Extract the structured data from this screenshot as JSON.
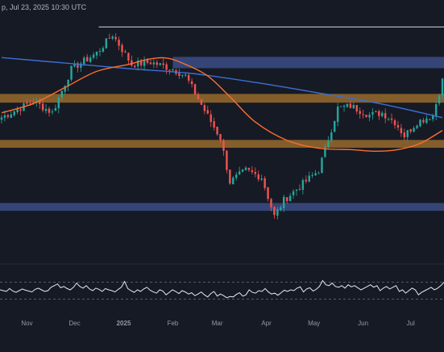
{
  "header": {
    "subtitle": "p, Jul 23, 2025 10:30 UTC"
  },
  "colors": {
    "background": "#161a25",
    "candle_up": "#26a69a",
    "candle_down": "#ef5350",
    "ma_fast": "#ff6d2e",
    "ma_slow": "#3b6fd4",
    "zone_orange": "#a8762e",
    "zone_blue": "#3b4e86",
    "resistance_line": "#d1d4dc",
    "rsi_line": "#e6e8ee",
    "axis_text": "#9598a1"
  },
  "chart_data": [
    {
      "type": "candlestick",
      "title": "",
      "x_axis": {
        "tick_labels": [
          "Nov",
          "Dec",
          "2025",
          "Feb",
          "Mar",
          "Apr",
          "May",
          "Jun",
          "Jul"
        ],
        "bold_labels": [
          "2025"
        ]
      },
      "y_axis": {
        "shown": false,
        "ylim": [
          0,
          100
        ]
      },
      "grid": false,
      "annotations": {
        "horizontal_line": {
          "level": 95.3,
          "from": "Dec"
        },
        "zones": [
          {
            "color": "blue",
            "from_level": 77.4,
            "to_level": 82.3,
            "from": "Feb"
          },
          {
            "color": "orange",
            "from_level": 62.4,
            "to_level": 66.2
          },
          {
            "color": "orange",
            "from_level": 42.8,
            "to_level": 46.2
          },
          {
            "color": "blue",
            "from_level": 15.4,
            "to_level": 18.8
          }
        ]
      },
      "series": [
        {
          "kind": "candles",
          "start": "2024-10-15",
          "period_days": 2,
          "count": 140,
          "close_path": [
            [
              0,
              56
            ],
            [
              10,
              63
            ],
            [
              16,
              58
            ],
            [
              22,
              77
            ],
            [
              30,
              84
            ],
            [
              35,
              92
            ],
            [
              41,
              79
            ],
            [
              47,
              80
            ],
            [
              54,
              77
            ],
            [
              58,
              74
            ],
            [
              64,
              59
            ],
            [
              69,
              47
            ],
            [
              72,
              28
            ],
            [
              77,
              33
            ],
            [
              82,
              30
            ],
            [
              86,
              13
            ],
            [
              89,
              20
            ],
            [
              94,
              26
            ],
            [
              100,
              33
            ],
            [
              106,
              60
            ],
            [
              110,
              61
            ],
            [
              116,
              57
            ],
            [
              120,
              58
            ],
            [
              124,
              54
            ],
            [
              127,
              48
            ],
            [
              131,
              54
            ],
            [
              136,
              57
            ],
            [
              139,
              72
            ]
          ]
        },
        {
          "kind": "moving_average_slow",
          "points": [
            [
              0,
              82
            ],
            [
              20,
              79.6
            ],
            [
              40,
              77.2
            ],
            [
              60,
              75.1
            ],
            [
              80,
              71.2
            ],
            [
              100,
              66.6
            ],
            [
              120,
              61.8
            ],
            [
              139,
              55.9
            ]
          ]
        },
        {
          "kind": "moving_average_fast",
          "points": [
            [
              0,
              58
            ],
            [
              10,
              62
            ],
            [
              20,
              69
            ],
            [
              30,
              76
            ],
            [
              40,
              79
            ],
            [
              46,
              81.2
            ],
            [
              52,
              81.8
            ],
            [
              58,
              79
            ],
            [
              65,
              74
            ],
            [
              72,
              65
            ],
            [
              80,
              54
            ],
            [
              90,
              46
            ],
            [
              100,
              42.6
            ],
            [
              110,
              42
            ],
            [
              118,
              41.3
            ],
            [
              125,
              42
            ],
            [
              132,
              44.7
            ],
            [
              139,
              50.3
            ]
          ]
        }
      ]
    },
    {
      "type": "line",
      "title": "",
      "indicator": "RSI",
      "reference_levels": [
        70,
        30
      ],
      "ylim": [
        0,
        100
      ],
      "values": [
        52,
        50,
        48,
        55,
        49,
        46,
        50,
        54,
        51,
        49,
        47,
        53,
        56,
        52,
        48,
        50,
        58,
        62,
        66,
        57,
        60,
        55,
        52,
        58,
        68,
        60,
        56,
        62,
        54,
        50,
        56,
        53,
        48,
        55,
        52,
        50,
        47,
        53,
        58,
        72,
        55,
        50,
        46,
        52,
        48,
        54,
        58,
        51,
        47,
        44,
        52,
        49,
        40,
        46,
        52,
        48,
        43,
        50,
        47,
        42,
        45,
        38,
        42,
        47,
        40,
        35,
        43,
        48,
        37,
        42,
        38,
        33,
        36,
        35,
        41,
        45,
        37,
        40,
        52,
        46,
        44,
        50,
        48,
        55,
        47,
        42,
        44,
        39,
        45,
        51,
        48,
        52,
        50,
        56,
        59,
        47,
        54,
        57,
        49,
        53,
        60,
        74,
        64,
        62,
        68,
        60,
        58,
        62,
        56,
        64,
        59,
        62,
        57,
        52,
        56,
        60,
        64,
        58,
        62,
        50,
        56,
        60,
        54,
        58,
        62,
        48,
        52,
        44,
        50,
        56,
        52,
        40,
        46,
        50,
        54,
        58,
        52,
        56,
        62,
        70
      ]
    }
  ]
}
